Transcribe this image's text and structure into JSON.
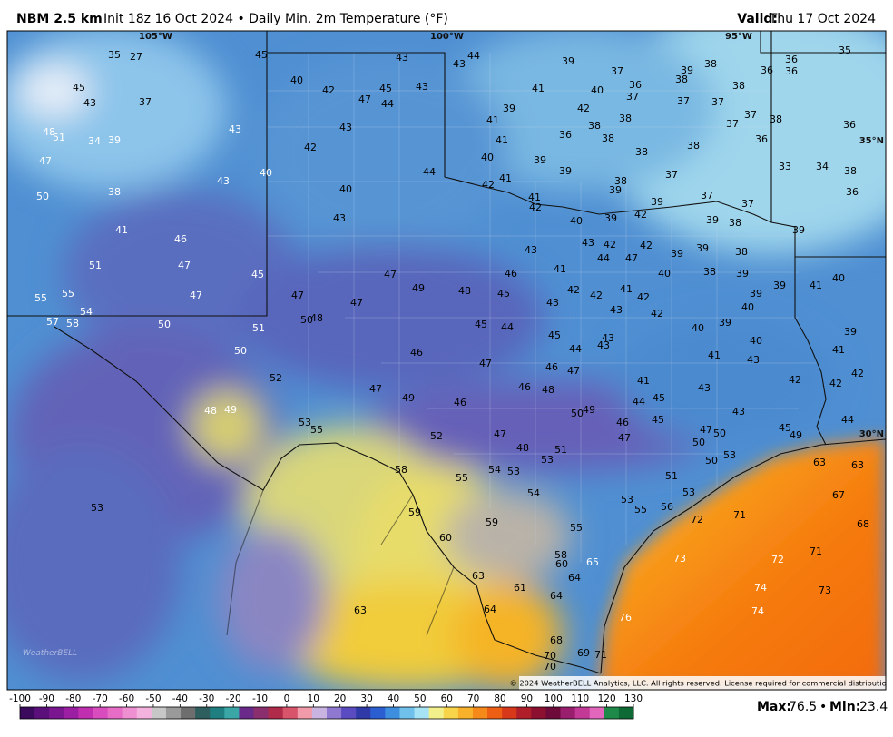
{
  "header": {
    "title": "NBM 2.5 km",
    "subtitle": "Init 18z 16 Oct 2024 • Daily Min. 2m Temperature (°F)",
    "valid_label": "Valid:",
    "valid_date": "Thu 17 Oct 2024"
  },
  "map": {
    "grid_labels": [
      "105°W",
      "100°W",
      "95°W",
      "35°N",
      "30°N"
    ],
    "logo": "WeatherBELL",
    "copyright": "© 2024 WeatherBELL Analytics, LLC. All rights reserved. License required for commercial distribution.",
    "stations": [
      35,
      27,
      45,
      43,
      43,
      44,
      39,
      37,
      39,
      38,
      36,
      36,
      36,
      35,
      45,
      40,
      42,
      47,
      45,
      43,
      44,
      41,
      40,
      36,
      38,
      37,
      38,
      43,
      37,
      42,
      37,
      37,
      37,
      39,
      41,
      38,
      38,
      37,
      43,
      43,
      38,
      36,
      48,
      51,
      34,
      39,
      36,
      38,
      41,
      36,
      38,
      42,
      38,
      47,
      40,
      39,
      33,
      34,
      38,
      44,
      40,
      39,
      37,
      43,
      41,
      42,
      38,
      39,
      36,
      50,
      38,
      40,
      41,
      42,
      39,
      37,
      37,
      42,
      39,
      40,
      39,
      38,
      39,
      43,
      41,
      46,
      43,
      43,
      42,
      42,
      39,
      39,
      38,
      44,
      47,
      51,
      47,
      45,
      47,
      46,
      41,
      40,
      38,
      39,
      39,
      41,
      40,
      55,
      55,
      47,
      47,
      47,
      49,
      48,
      45,
      43,
      42,
      42,
      41,
      42,
      39,
      40,
      54,
      43,
      42,
      57,
      58,
      50,
      51,
      50,
      48,
      45,
      44,
      40,
      39,
      45,
      43,
      43,
      44,
      40,
      41,
      41,
      39,
      50,
      46,
      47,
      46,
      47,
      43,
      52,
      41,
      42,
      42,
      42,
      46,
      48,
      43,
      47,
      49,
      46,
      44,
      45,
      48,
      49,
      50,
      49,
      43,
      45,
      46,
      44,
      53,
      55,
      52,
      47,
      47,
      50,
      45,
      49,
      47,
      50,
      48,
      51,
      53,
      53,
      50,
      63,
      63,
      58,
      54,
      53,
      55,
      51,
      54,
      53,
      53,
      67,
      56,
      55,
      72,
      71,
      53,
      59,
      59,
      55,
      68,
      60,
      71,
      73,
      72,
      58,
      60,
      65,
      63,
      64,
      61,
      74,
      73,
      64,
      64,
      63,
      74,
      76,
      68,
      70,
      69,
      71,
      70
    ]
  },
  "colorbar": {
    "lim": [
      -100,
      130
    ],
    "ticks": [
      -100,
      -90,
      -80,
      -70,
      -60,
      -50,
      -40,
      -30,
      -20,
      -10,
      0,
      10,
      20,
      30,
      40,
      50,
      60,
      70,
      80,
      90,
      100,
      110,
      120,
      130
    ]
  },
  "footer": {
    "max_label": "Max:",
    "max_value": 76.5,
    "separator": "•",
    "min_label": "Min:",
    "min_value": 23.4
  }
}
